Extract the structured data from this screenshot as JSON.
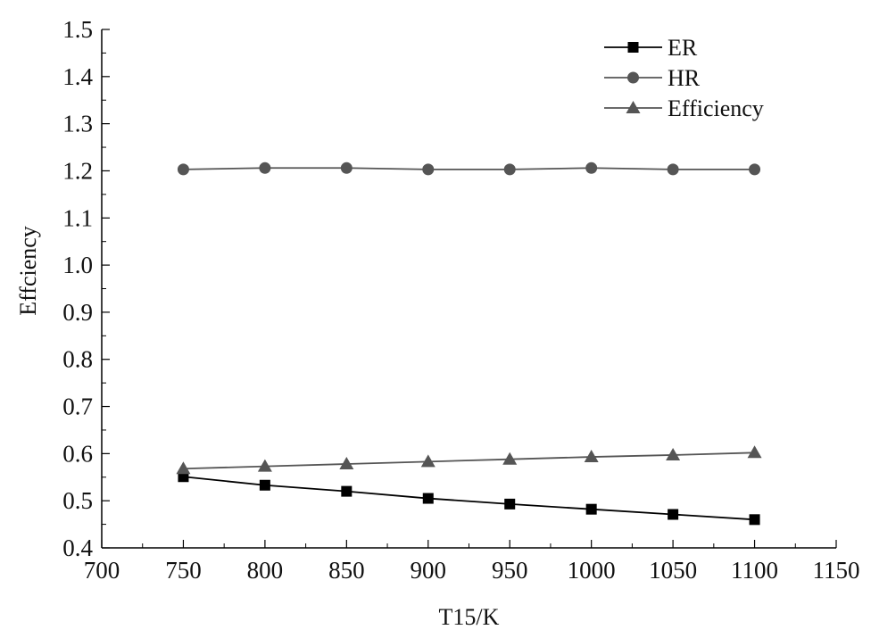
{
  "chart_data": {
    "type": "line",
    "xlabel": "T15/K",
    "ylabel": "Effciency",
    "xlim": [
      700,
      1150
    ],
    "ylim": [
      0.4,
      1.5
    ],
    "x_ticks": [
      700,
      750,
      800,
      850,
      900,
      950,
      1000,
      1050,
      1100,
      1150
    ],
    "y_ticks": [
      "0.4",
      "0.5",
      "0.6",
      "0.7",
      "0.8",
      "0.9",
      "1.0",
      "1.1",
      "1.2",
      "1.3",
      "1.4",
      "1.5"
    ],
    "grid": false,
    "legend_position": "top-right",
    "series": [
      {
        "name": "ER",
        "marker": "square",
        "color": "#000000",
        "x": [
          750,
          800,
          850,
          900,
          950,
          1000,
          1050,
          1100
        ],
        "y": [
          0.551,
          0.533,
          0.52,
          0.505,
          0.493,
          0.482,
          0.471,
          0.46
        ]
      },
      {
        "name": "HR",
        "marker": "circle",
        "color": "#555555",
        "x": [
          750,
          800,
          850,
          900,
          950,
          1000,
          1050,
          1100
        ],
        "y": [
          1.203,
          1.206,
          1.206,
          1.203,
          1.203,
          1.206,
          1.203,
          1.203
        ]
      },
      {
        "name": "Efficiency",
        "marker": "triangle",
        "color": "#555555",
        "x": [
          750,
          800,
          850,
          900,
          950,
          1000,
          1050,
          1100
        ],
        "y": [
          0.568,
          0.573,
          0.578,
          0.583,
          0.588,
          0.593,
          0.597,
          0.602
        ]
      }
    ]
  }
}
